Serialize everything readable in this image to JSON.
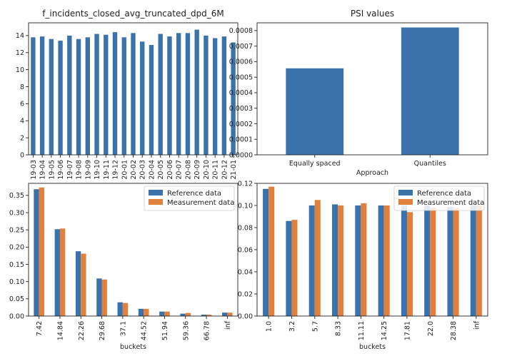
{
  "colors": {
    "blue": "#3a72ab",
    "orange": "#e1803d",
    "axis": "#222222"
  },
  "chart_data": [
    {
      "id": "top-left",
      "type": "bar",
      "title": "f_incidents_closed_avg_truncated_dpd_6M",
      "xlabel": "",
      "ylabel": "",
      "ylim": [
        0,
        15.5
      ],
      "yticks": [
        0,
        2,
        4,
        6,
        8,
        10,
        12,
        14
      ],
      "ytick_labels": [
        "0",
        "2",
        "4",
        "6",
        "8",
        "10",
        "12",
        "14"
      ],
      "categories": [
        "19-03",
        "19-04",
        "19-05",
        "19-06",
        "19-07",
        "19-08",
        "19-09",
        "19-10",
        "19-11",
        "19-12",
        "20-01",
        "20-02",
        "20-03",
        "20-04",
        "20-05",
        "20-06",
        "20-07",
        "20-08",
        "20-09",
        "20-10",
        "20-11",
        "20-12",
        "21-01"
      ],
      "series": [
        {
          "color": "#3a72ab",
          "values": [
            13.8,
            13.9,
            13.6,
            13.4,
            14.0,
            13.6,
            13.8,
            14.2,
            14.1,
            14.4,
            13.8,
            14.3,
            13.3,
            12.9,
            14.2,
            13.9,
            14.3,
            14.3,
            14.7,
            14.0,
            13.7,
            13.9,
            13.2
          ]
        }
      ],
      "legend": false,
      "grid": false
    },
    {
      "id": "top-right",
      "type": "bar",
      "title": "PSI values",
      "xlabel": "Approach",
      "ylabel": "",
      "ylim": [
        0,
        0.00085
      ],
      "yticks": [
        0,
        0.0001,
        0.0002,
        0.0003,
        0.0004,
        0.0005,
        0.0006,
        0.0007,
        0.0008
      ],
      "ytick_labels": [
        "0.0000",
        "0.0001",
        "0.0002",
        "0.0003",
        "0.0004",
        "0.0005",
        "0.0006",
        "0.0007",
        "0.0008"
      ],
      "categories": [
        "Equally spaced",
        "Quantiles"
      ],
      "series": [
        {
          "color": "#3a72ab",
          "values": [
            0.000557,
            0.00082
          ]
        }
      ],
      "legend": false,
      "grid": false
    },
    {
      "id": "bottom-left",
      "type": "bar",
      "title": "",
      "xlabel": "buckets",
      "ylabel": "",
      "ylim": [
        0,
        0.385
      ],
      "yticks": [
        0,
        0.05,
        0.1,
        0.15,
        0.2,
        0.25,
        0.3,
        0.35
      ],
      "ytick_labels": [
        "0.00",
        "0.05",
        "0.10",
        "0.15",
        "0.20",
        "0.25",
        "0.30",
        "0.35"
      ],
      "categories": [
        "7.42",
        "14.84",
        "22.26",
        "29.68",
        "37.1",
        "44.52",
        "51.94",
        "59.36",
        "66.78",
        "inf"
      ],
      "series": [
        {
          "name": "Reference data",
          "color": "#3a72ab",
          "values": [
            0.368,
            0.252,
            0.188,
            0.109,
            0.04,
            0.021,
            0.013,
            0.007,
            0.004,
            0.01
          ]
        },
        {
          "name": "Measurement data",
          "color": "#e1803d",
          "values": [
            0.373,
            0.254,
            0.181,
            0.106,
            0.038,
            0.021,
            0.013,
            0.009,
            0.004,
            0.01
          ]
        }
      ],
      "legend": true,
      "legend_position": "top-right",
      "grid": false
    },
    {
      "id": "bottom-right",
      "type": "bar",
      "title": "",
      "xlabel": "buckets",
      "ylabel": "",
      "ylim": [
        0,
        0.12
      ],
      "yticks": [
        0,
        0.02,
        0.04,
        0.06,
        0.08,
        0.1,
        0.12
      ],
      "ytick_labels": [
        "0.00",
        "0.02",
        "0.04",
        "0.06",
        "0.08",
        "0.10",
        "0.12"
      ],
      "categories": [
        "1.0",
        "3.2",
        "5.7",
        "8.33",
        "11.11",
        "14.25",
        "17.81",
        "22.0",
        "28.38",
        "inf"
      ],
      "series": [
        {
          "name": "Reference data",
          "color": "#3a72ab",
          "values": [
            0.115,
            0.086,
            0.1,
            0.101,
            0.1,
            0.1,
            0.1,
            0.1,
            0.099,
            0.1
          ]
        },
        {
          "name": "Measurement data",
          "color": "#e1803d",
          "values": [
            0.117,
            0.087,
            0.105,
            0.1,
            0.102,
            0.1,
            0.094,
            0.098,
            0.098,
            0.1
          ]
        }
      ],
      "legend": true,
      "legend_position": "top-right",
      "grid": false
    }
  ]
}
